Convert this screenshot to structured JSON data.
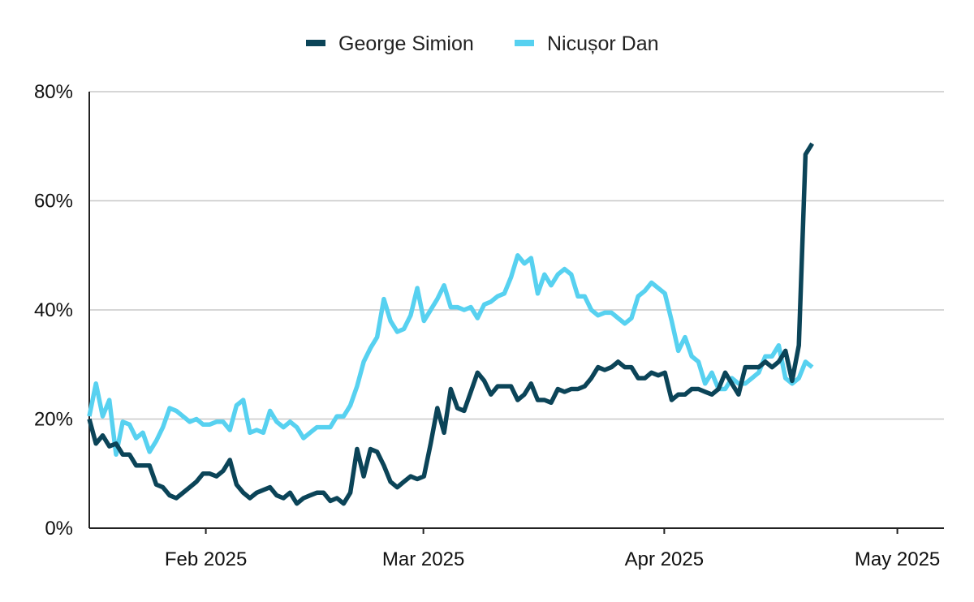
{
  "chart_data": {
    "type": "line",
    "title": "",
    "xlabel": "",
    "ylabel": "",
    "ylim": [
      0,
      80
    ],
    "ytick_values": [
      0,
      20,
      40,
      60,
      80
    ],
    "ytick_labels": [
      "0%",
      "20%",
      "40%",
      "60%",
      "80%"
    ],
    "xlim": [
      "2025-01-17",
      "2025-05-07"
    ],
    "xtick_values": [
      "2025-02-01",
      "2025-03-01",
      "2025-04-01",
      "2025-05-01"
    ],
    "xtick_labels": [
      "Feb 2025",
      "Mar 2025",
      "Apr 2025",
      "May 2025"
    ],
    "grid": true,
    "legend_position": "top-center",
    "x_start_date": "2025-01-17",
    "x_step_days": 0.8615,
    "series": [
      {
        "name": "George Simion",
        "color": "#0b4458",
        "values": [
          20,
          15.5,
          17,
          15,
          15.5,
          13.5,
          13.5,
          11.5,
          11.5,
          11.5,
          8,
          7.5,
          6,
          5.5,
          6.5,
          7.5,
          8.5,
          10,
          10,
          9.5,
          10.5,
          12.5,
          8,
          6.5,
          5.5,
          6.5,
          7,
          7.5,
          6,
          5.5,
          6.5,
          4.5,
          5.5,
          6,
          6.5,
          6.5,
          5,
          5.5,
          4.5,
          6.5,
          14.5,
          9.5,
          14.5,
          14,
          11.5,
          8.5,
          7.5,
          8.5,
          9.5,
          9,
          9.5,
          15.5,
          22,
          17.5,
          25.5,
          22,
          21.5,
          25,
          28.5,
          27,
          24.5,
          26,
          26,
          26,
          23.5,
          24.5,
          26.5,
          23.5,
          23.5,
          23,
          25.5,
          25,
          25.5,
          25.5,
          26,
          27.5,
          29.5,
          29,
          29.5,
          30.5,
          29.5,
          29.5,
          27.5,
          27.5,
          28.5,
          28,
          28.5,
          23.5,
          24.5,
          24.5,
          25.5,
          25.5,
          25,
          24.5,
          25.5,
          28.5,
          26.5,
          24.5,
          29.5,
          29.5,
          29.5,
          30.5,
          29.5,
          30.5,
          32.5,
          27,
          33.5,
          68.5,
          70.5
        ]
      },
      {
        "name": "Nicușor Dan",
        "color": "#57d1f0",
        "values": [
          20.5,
          26.5,
          20.5,
          23.5,
          13.5,
          19.5,
          19,
          16.5,
          17.5,
          14,
          16,
          18.5,
          22,
          21.5,
          20.5,
          19.5,
          20,
          19,
          19,
          19.5,
          19.5,
          18,
          22.5,
          23.5,
          17.5,
          18,
          17.5,
          21.5,
          19.5,
          18.5,
          19.5,
          18.5,
          16.5,
          17.5,
          18.5,
          18.5,
          18.5,
          20.5,
          20.5,
          22.5,
          26,
          30.5,
          33,
          35,
          42,
          38,
          36,
          36.5,
          39,
          44,
          38,
          40,
          42,
          44.5,
          40.5,
          40.5,
          40,
          40.5,
          38.5,
          41,
          41.5,
          42.5,
          43,
          46,
          50,
          48.5,
          49.5,
          43,
          46.5,
          44.5,
          46.5,
          47.5,
          46.5,
          42.5,
          42.5,
          40,
          39,
          39.5,
          39.5,
          38.5,
          37.5,
          38.5,
          42.5,
          43.5,
          45,
          44,
          43,
          38,
          32.5,
          35,
          31.5,
          30.5,
          26.5,
          28.5,
          25.5,
          25.5,
          27.5,
          26.5,
          26.5,
          27.5,
          28.5,
          31.5,
          31.5,
          33.5,
          27.5,
          26.5,
          27.5,
          30.5,
          29.5
        ]
      }
    ]
  }
}
